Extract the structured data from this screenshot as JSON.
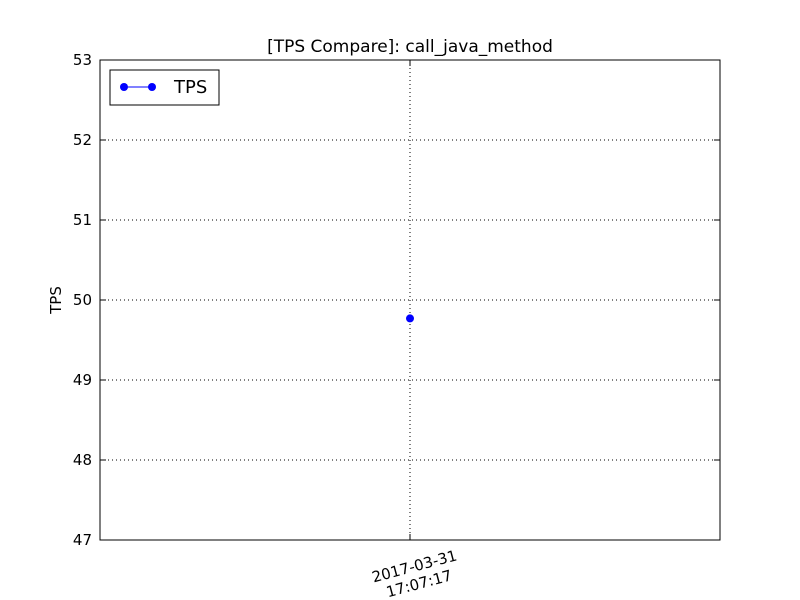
{
  "chart_data": {
    "type": "line",
    "title": "[TPS Compare]: call_java_method",
    "xlabel": "",
    "ylabel": "TPS",
    "ylim": [
      47,
      53
    ],
    "yticks": [
      47,
      48,
      49,
      50,
      51,
      52,
      53
    ],
    "grid": true,
    "legend_position": "top-left",
    "x": [
      "2017-03-31 17:07:17"
    ],
    "x_tick_labels": [
      [
        "2017-03-31",
        "17:07:17"
      ]
    ],
    "series": [
      {
        "name": "TPS",
        "color": "#0000ff",
        "marker": "circle",
        "values": [
          49.77
        ]
      }
    ]
  }
}
